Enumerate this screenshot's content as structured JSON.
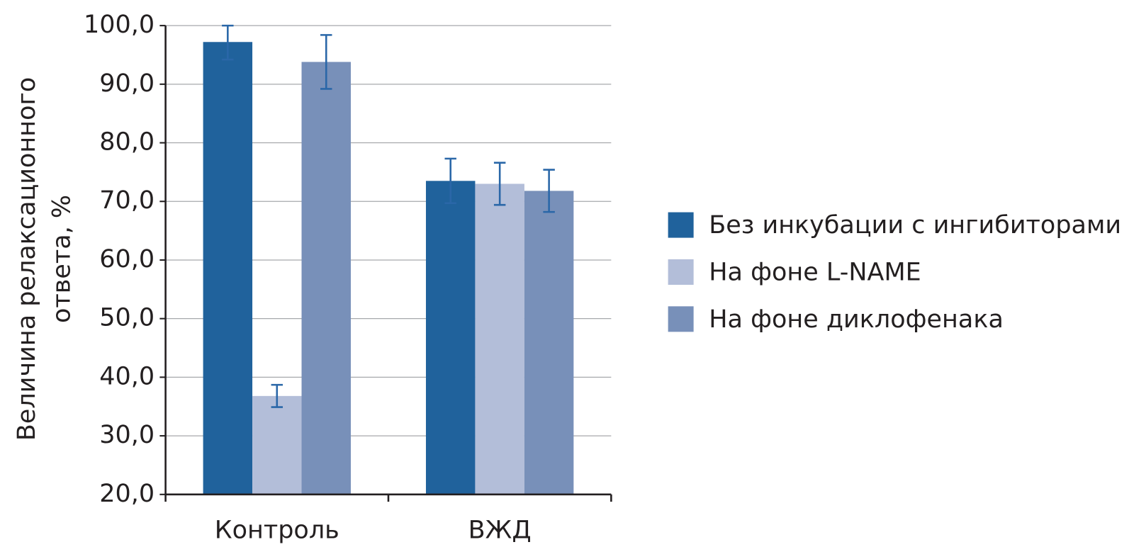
{
  "chart_data": {
    "type": "bar",
    "y_label": [
      "Величина релаксационного",
      "ответа, %"
    ],
    "categories": [
      "Контроль",
      "ВЖД"
    ],
    "series": [
      {
        "name": "Без инкубации с ингибиторами",
        "color": "#20629c",
        "values": [
          97.2,
          73.5
        ],
        "errors": [
          3.0,
          3.8
        ]
      },
      {
        "name": "На фоне L-NAME",
        "color": "#b3bed9",
        "values": [
          36.8,
          73.0
        ],
        "errors": [
          1.9,
          3.6
        ]
      },
      {
        "name": "На фоне диклофенака",
        "color": "#7890b9",
        "values": [
          93.8,
          71.8
        ],
        "errors": [
          4.6,
          3.6
        ]
      }
    ],
    "error_color": "#2a67a8",
    "ylim": [
      20,
      100
    ],
    "yticks": [
      {
        "value": 20,
        "label": "20,0"
      },
      {
        "value": 30,
        "label": "30,0"
      },
      {
        "value": 40,
        "label": "40,0"
      },
      {
        "value": 50,
        "label": "50,0"
      },
      {
        "value": 60,
        "label": "60,0"
      },
      {
        "value": 70,
        "label": "70,0"
      },
      {
        "value": 80,
        "label": "80,0"
      },
      {
        "value": 90,
        "label": "90,0"
      },
      {
        "value": 100,
        "label": "100,0"
      }
    ],
    "grid": true,
    "legend": "right"
  }
}
